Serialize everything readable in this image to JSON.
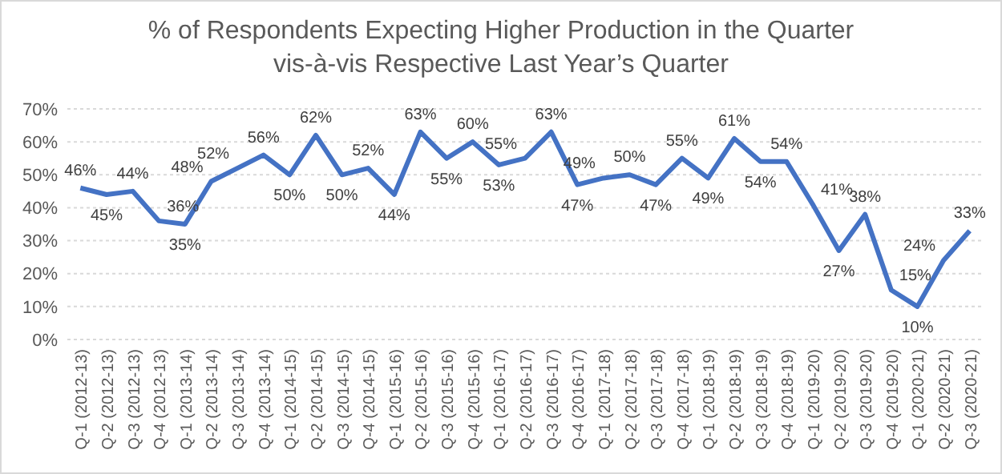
{
  "chart_data": {
    "type": "line",
    "title": "% of Respondents Expecting Higher Production in the Quarter",
    "subtitle": "vis-à-vis Respective Last Year’s Quarter",
    "categories": [
      "Q-1 (2012-13)",
      "Q-2 (2012-13)",
      "Q-3 (2012-13)",
      "Q-4 (2012-13)",
      "Q-1 (2013-14)",
      "Q-2 (2013-14)",
      "Q-3 (2013-14)",
      "Q-4 (2013-14)",
      "Q-1 (2014-15)",
      "Q-2 (2014-15)",
      "Q-3 (2014-15)",
      "Q-4 (2014-15)",
      "Q-1 (2015-16)",
      "Q-2 (2015-16)",
      "Q-3 (2015-16)",
      "Q-4 (2015-16)",
      "Q-1 (2016-17)",
      "Q-2 (2016-17)",
      "Q-3 (2016-17)",
      "Q-4 (2016-17)",
      "Q-1 (2017-18)",
      "Q-2 (2017-18)",
      "Q-3 (2017-18)",
      "Q-4 (2017-18)",
      "Q-1 (2018-19)",
      "Q-2 (2018-19)",
      "Q-3 (2018-19)",
      "Q-4 (2018-19)",
      "Q-1 (2019-20)",
      "Q-2 (2019-20)",
      "Q-3 (2019-20)",
      "Q-4 (2019-20)",
      "Q-1 (2020-21)",
      "Q-2 (2020-21)",
      "Q-3 (2020-21)"
    ],
    "series": [
      {
        "color": "#4472c4",
        "values": [
          46,
          44,
          45,
          36,
          35,
          48,
          52,
          56,
          50,
          62,
          50,
          52,
          44,
          63,
          55,
          60,
          53,
          55,
          63,
          47,
          49,
          50,
          47,
          55,
          49,
          61,
          54,
          54,
          41,
          27,
          38,
          15,
          10,
          24,
          33
        ]
      }
    ],
    "value_labels": [
      "46%",
      "45%",
      "44%",
      "36%",
      "35%",
      "48%",
      "52%",
      "56%",
      "50%",
      "62%",
      "50%",
      "52%",
      "44%",
      "63%",
      "55%",
      "60%",
      "53%",
      "55%",
      "63%",
      "47%",
      "49%",
      "50%",
      "47%",
      "55%",
      "49%",
      "61%",
      "54%",
      "54%",
      "41%",
      "27%",
      "38%",
      "15%",
      "10%",
      "24%",
      "33%"
    ],
    "ylim": [
      0,
      70
    ],
    "yticks": [
      {
        "value": 0,
        "label": "0%"
      },
      {
        "value": 10,
        "label": "10%"
      },
      {
        "value": 20,
        "label": "20%"
      },
      {
        "value": 30,
        "label": "30%"
      },
      {
        "value": 40,
        "label": "40%"
      },
      {
        "value": 50,
        "label": "50%"
      },
      {
        "value": 60,
        "label": "60%"
      },
      {
        "value": 70,
        "label": "70%"
      }
    ],
    "grid": "y",
    "marker": "none",
    "line_style": "solid"
  }
}
